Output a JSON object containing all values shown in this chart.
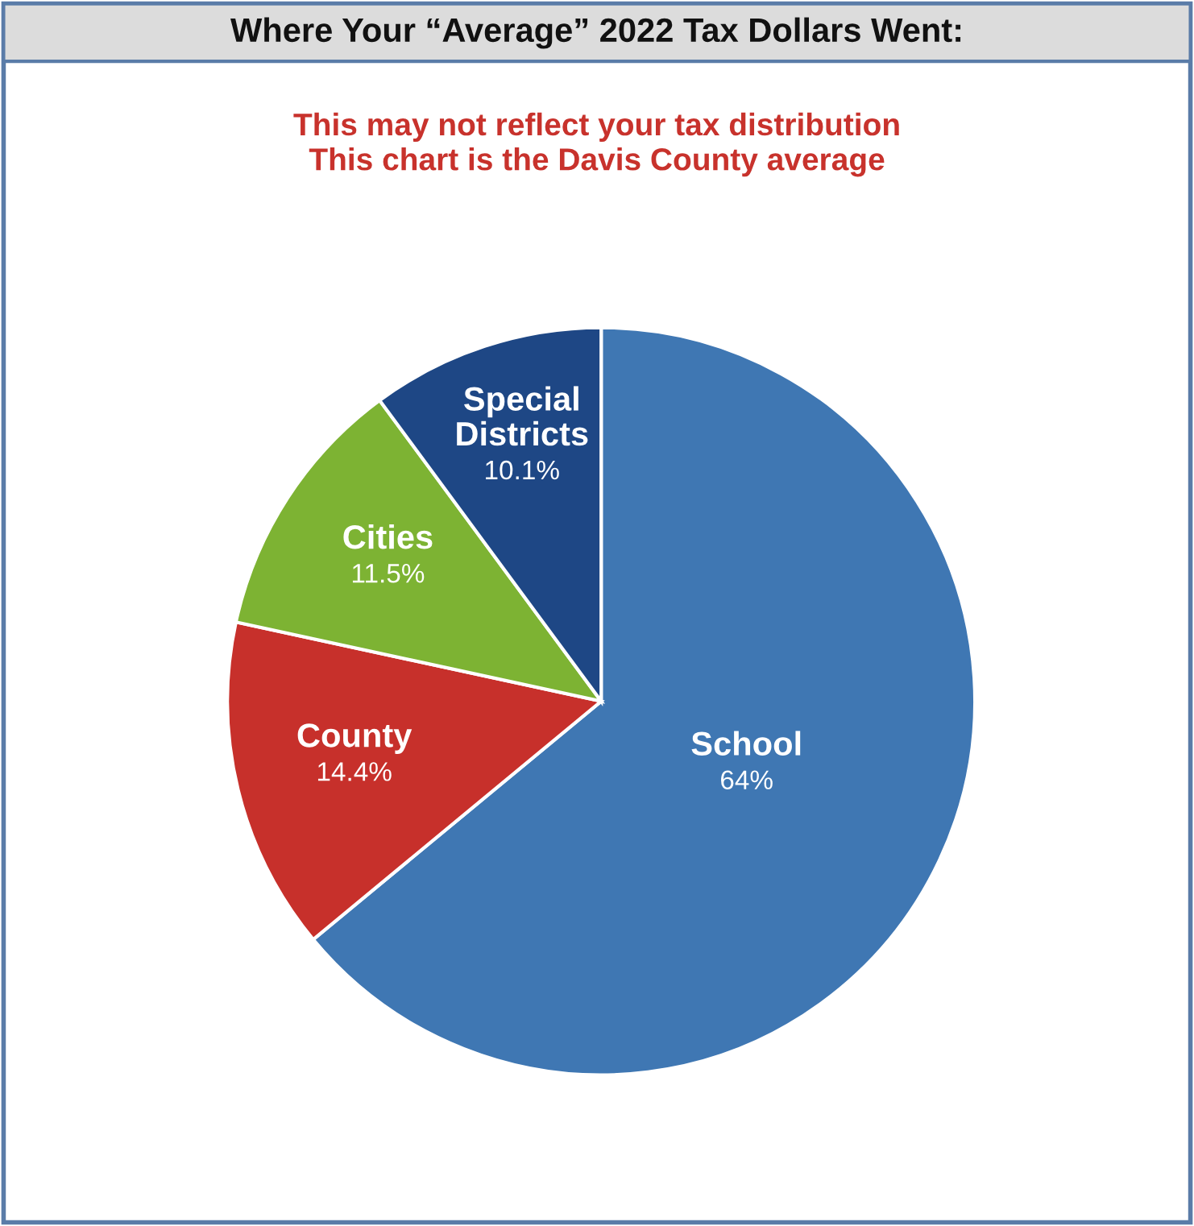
{
  "chart_data": {
    "type": "pie",
    "title": "Where Your “Average” 2022 Tax Dollars Went:",
    "subtitle": "This may not reflect your tax distribution\nThis chart is the Davis County average",
    "categories": [
      "School",
      "County",
      "Cities",
      "Special\nDistricts"
    ],
    "values": [
      64,
      14.4,
      11.5,
      10.1
    ],
    "value_labels": [
      "64%",
      "14.4%",
      "11.5%",
      "10.1%"
    ],
    "colors": [
      "#3f77b3",
      "#c7302b",
      "#7db333",
      "#1e4785"
    ],
    "legend": false
  }
}
